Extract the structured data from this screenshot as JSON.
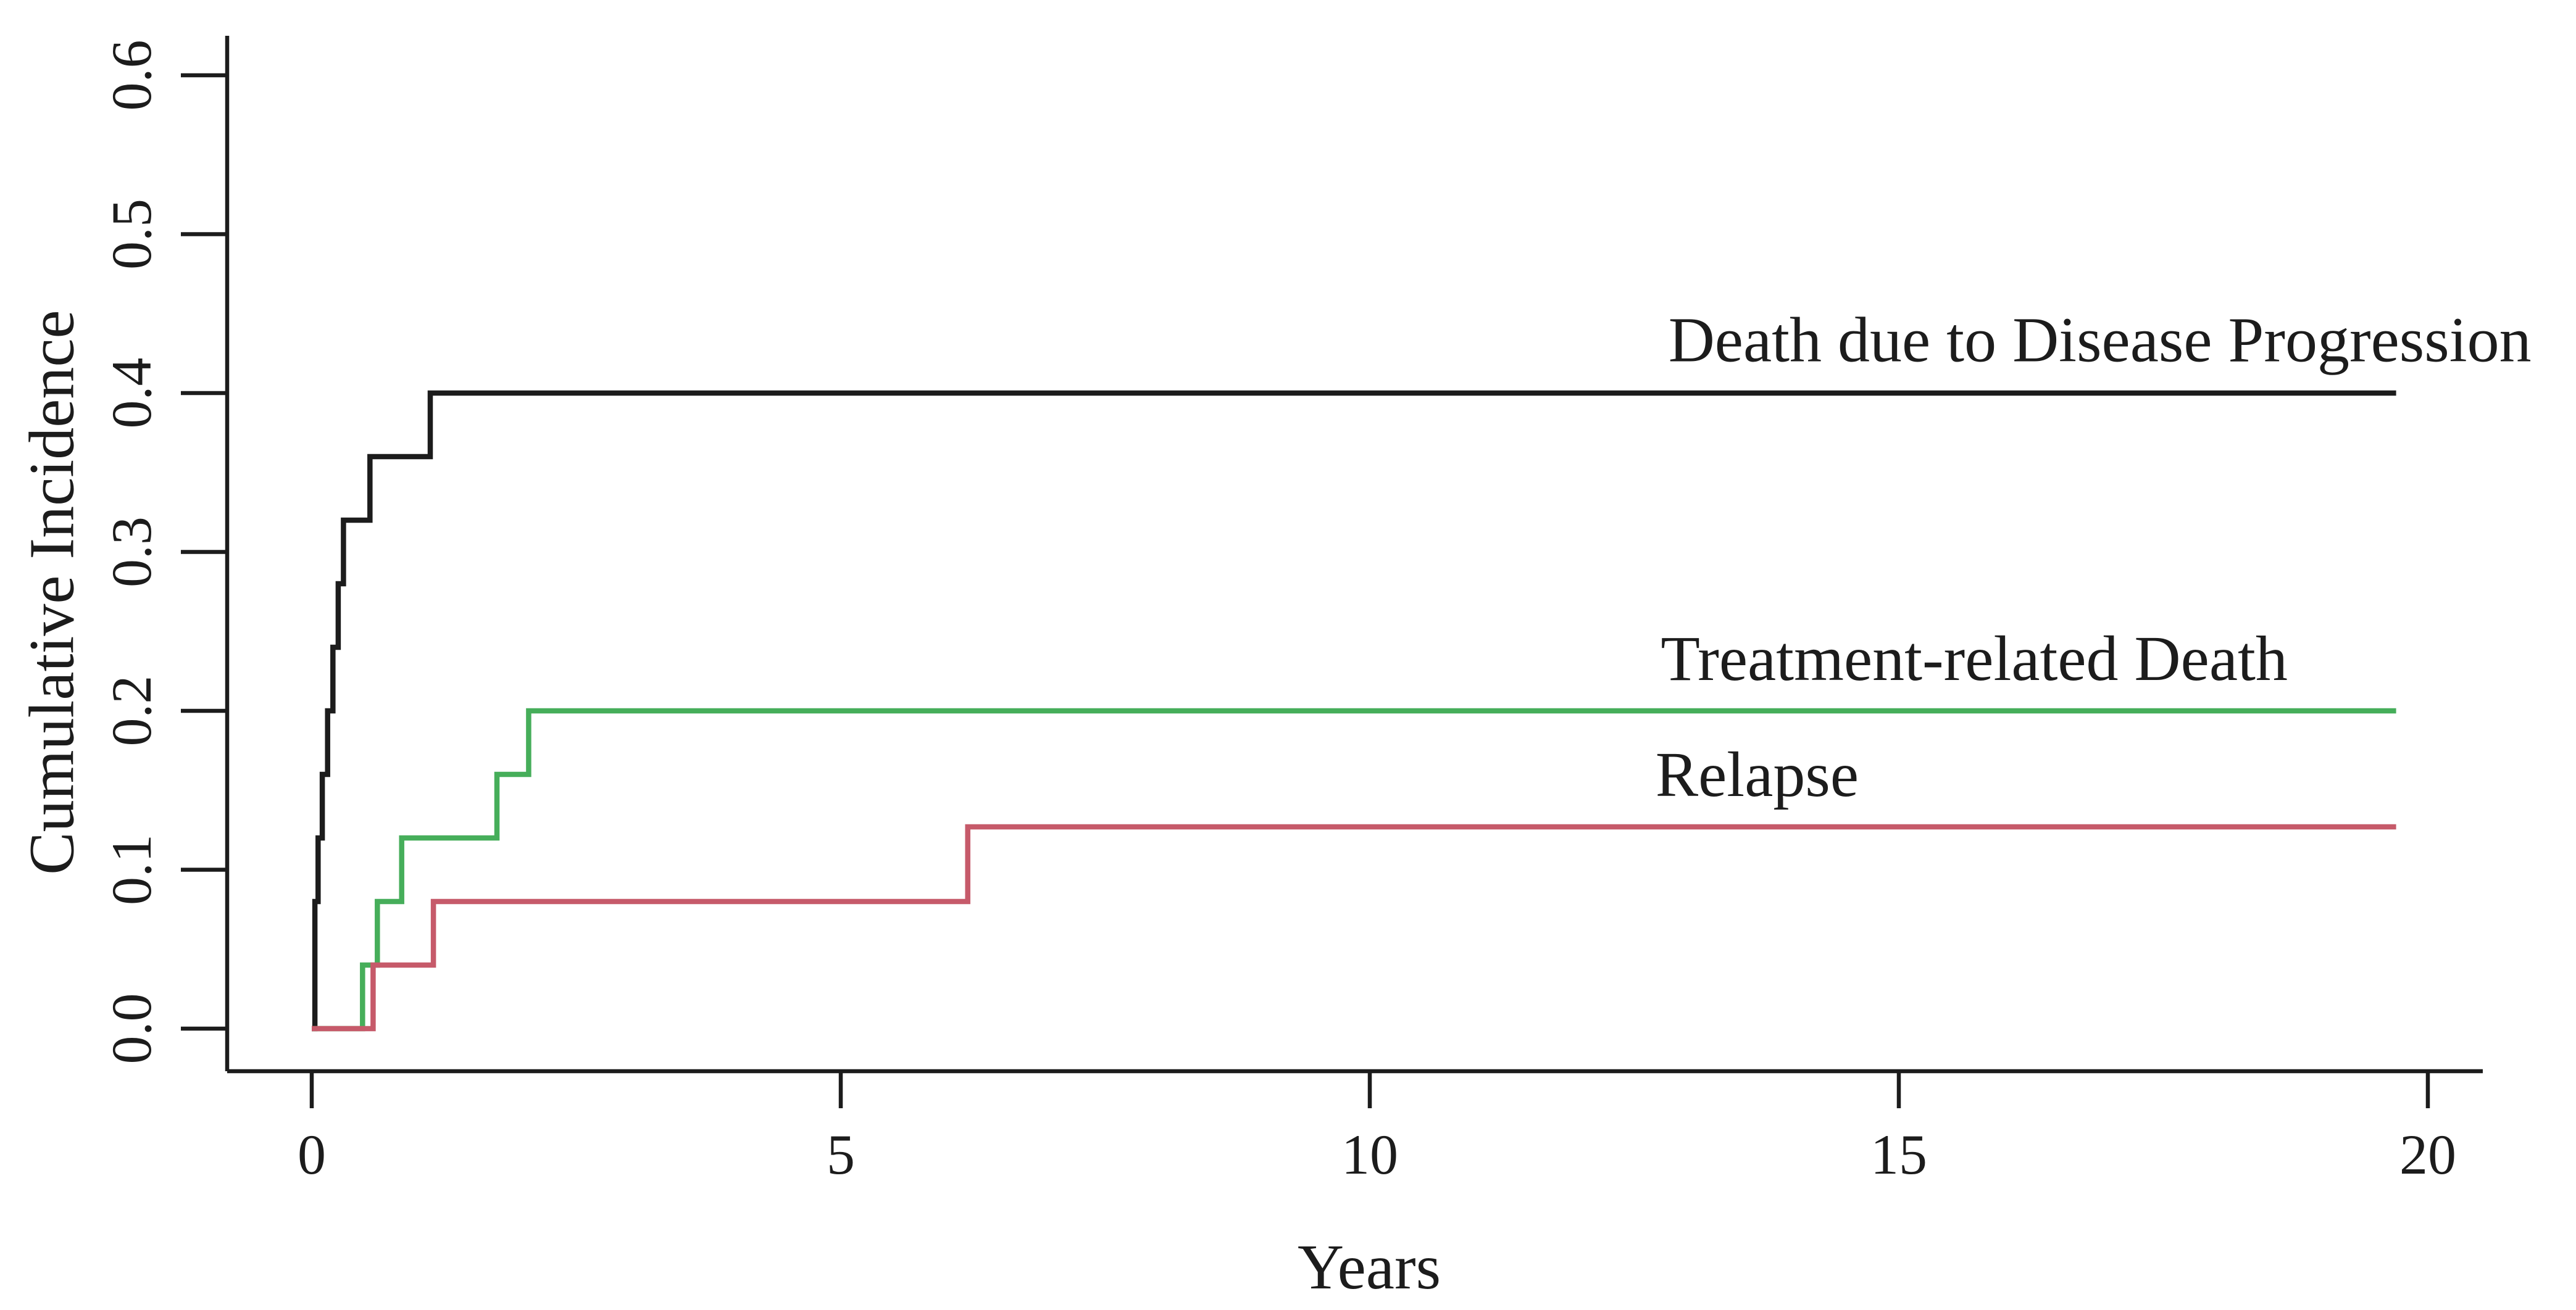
{
  "chart_data": {
    "type": "line",
    "subtype": "step",
    "title": "",
    "xlabel": "Years",
    "ylabel": "Cumulative Incidence",
    "xlim": [
      0,
      20
    ],
    "ylim": [
      0,
      0.6
    ],
    "x_ticks": [
      0,
      5,
      10,
      15,
      20
    ],
    "x_tick_labels": [
      "0",
      "5",
      "10",
      "15",
      "20"
    ],
    "y_ticks": [
      0.0,
      0.1,
      0.2,
      0.3,
      0.4,
      0.5,
      0.6
    ],
    "y_tick_labels": [
      "0.0",
      "0.1",
      "0.2",
      "0.3",
      "0.4",
      "0.5",
      "0.6"
    ],
    "grid": false,
    "legend_position": "inline-annotations",
    "axis_color": "#1c1c1c",
    "background_color": "#ffffff",
    "series": [
      {
        "id": "death-due-to-disease-progression",
        "name": "Death due to Disease Progression",
        "color": "#1c1c1c",
        "final_value": 0.4,
        "points": [
          [
            0,
            0
          ],
          [
            0.03,
            0.08
          ],
          [
            0.06,
            0.12
          ],
          [
            0.1,
            0.16
          ],
          [
            0.15,
            0.2
          ],
          [
            0.2,
            0.24
          ],
          [
            0.25,
            0.28
          ],
          [
            0.3,
            0.32
          ],
          [
            0.55,
            0.36
          ],
          [
            1.12,
            0.4
          ],
          [
            19.7,
            0.4
          ]
        ]
      },
      {
        "id": "treatment-related-death",
        "name": "Treatment-related Death",
        "color": "#46ae5a",
        "final_value": 0.2,
        "points": [
          [
            0,
            0
          ],
          [
            0.48,
            0.04
          ],
          [
            0.62,
            0.08
          ],
          [
            0.85,
            0.12
          ],
          [
            1.75,
            0.16
          ],
          [
            2.05,
            0.2
          ],
          [
            19.7,
            0.2
          ]
        ]
      },
      {
        "id": "relapse",
        "name": "Relapse",
        "color": "#c65a6a",
        "final_value": 0.127,
        "points": [
          [
            0,
            0
          ],
          [
            0.58,
            0.04
          ],
          [
            1.15,
            0.08
          ],
          [
            6.2,
            0.127
          ],
          [
            19.7,
            0.127
          ]
        ]
      }
    ],
    "annotations": [
      {
        "series": "death-due-to-disease-progression",
        "text": "Death due to Disease Progression",
        "x": 16.9,
        "y": 0.42,
        "anchor": "middle"
      },
      {
        "series": "treatment-related-death",
        "text": "Treatment-related Death",
        "x": 12.75,
        "y": 0.2195,
        "anchor": "start"
      },
      {
        "series": "relapse",
        "text": "Relapse",
        "x": 12.7,
        "y": 0.1465,
        "anchor": "start"
      }
    ]
  }
}
